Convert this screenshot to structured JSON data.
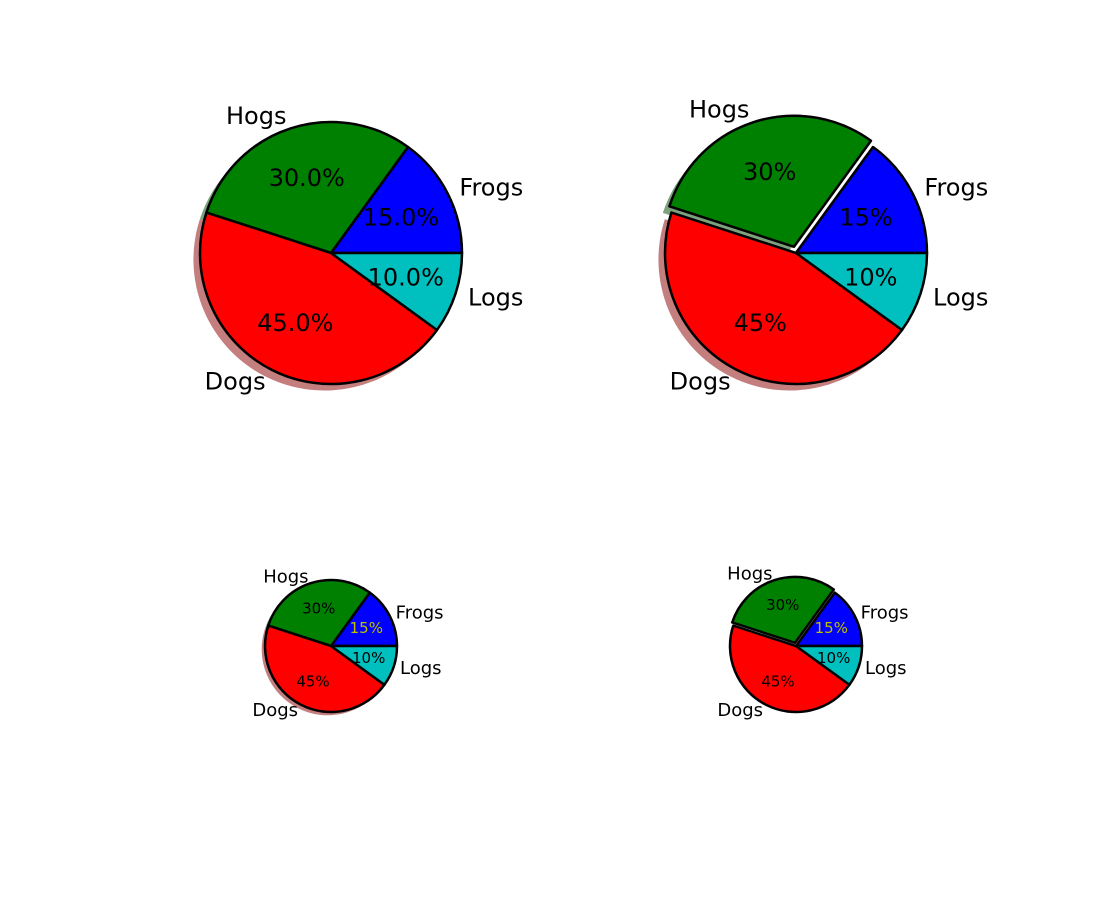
{
  "chart_data": [
    {
      "type": "pie",
      "shadow": true,
      "autopct_format": "%1.1f%%",
      "pct_label_color": "#000000",
      "slices": [
        {
          "label": "Frogs",
          "value": 15,
          "pct_label": "15.0%",
          "color": "#0000ff",
          "explode": 0
        },
        {
          "label": "Hogs",
          "value": 30,
          "pct_label": "30.0%",
          "color": "#008000",
          "explode": 0
        },
        {
          "label": "Dogs",
          "value": 45,
          "pct_label": "45.0%",
          "color": "#ff0000",
          "explode": 0
        },
        {
          "label": "Logs",
          "value": 10,
          "pct_label": "10.0%",
          "color": "#00bfbf",
          "explode": 0
        }
      ]
    },
    {
      "type": "pie",
      "shadow": true,
      "autopct_format": "%1.0f%%",
      "pct_label_color": "#000000",
      "slices": [
        {
          "label": "Frogs",
          "value": 15,
          "pct_label": "15%",
          "color": "#0000ff",
          "explode": 0
        },
        {
          "label": "Hogs",
          "value": 30,
          "pct_label": "30%",
          "color": "#008000",
          "explode": 0.05
        },
        {
          "label": "Dogs",
          "value": 45,
          "pct_label": "45%",
          "color": "#ff0000",
          "explode": 0
        },
        {
          "label": "Logs",
          "value": 10,
          "pct_label": "10%",
          "color": "#00bfbf",
          "explode": 0
        }
      ]
    },
    {
      "type": "pie",
      "shadow": true,
      "autopct_format": "%1.0f%%",
      "pct_label_color": "#000000",
      "slices": [
        {
          "label": "Frogs",
          "value": 15,
          "pct_label": "15%",
          "color": "#0000ff",
          "explode": 0,
          "pct_color": "#bfbf00"
        },
        {
          "label": "Hogs",
          "value": 30,
          "pct_label": "30%",
          "color": "#008000",
          "explode": 0
        },
        {
          "label": "Dogs",
          "value": 45,
          "pct_label": "45%",
          "color": "#ff0000",
          "explode": 0
        },
        {
          "label": "Logs",
          "value": 10,
          "pct_label": "10%",
          "color": "#00bfbf",
          "explode": 0
        }
      ]
    },
    {
      "type": "pie",
      "shadow": false,
      "autopct_format": "%1.0f%%",
      "pct_label_color": "#000000",
      "slices": [
        {
          "label": "Frogs",
          "value": 15,
          "pct_label": "15%",
          "color": "#0000ff",
          "explode": 0,
          "pct_color": "#bfbf00"
        },
        {
          "label": "Hogs",
          "value": 30,
          "pct_label": "30%",
          "color": "#008000",
          "explode": 0.05
        },
        {
          "label": "Dogs",
          "value": 45,
          "pct_label": "45%",
          "color": "#ff0000",
          "explode": 0
        },
        {
          "label": "Logs",
          "value": 10,
          "pct_label": "10%",
          "color": "#00bfbf",
          "explode": 0
        }
      ]
    }
  ]
}
